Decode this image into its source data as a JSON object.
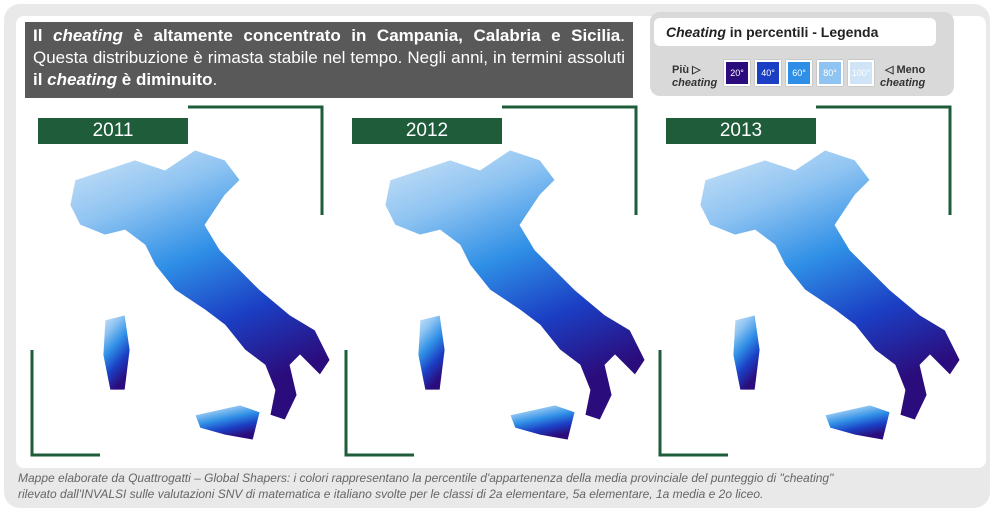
{
  "header": {
    "segments": [
      {
        "text": "Il ",
        "style": "bold"
      },
      {
        "text": "cheating",
        "style": "bold-italic"
      },
      {
        "text": " è altamente concentrato in Campania, Calabria e Sicilia",
        "style": "bold"
      },
      {
        "text": ". Questa distribuzione è rimasta stabile nel tempo. Negli anni, in termini assoluti ",
        "style": "normal"
      },
      {
        "text": "il ",
        "style": "bold"
      },
      {
        "text": "cheating",
        "style": "bold-italic"
      },
      {
        "text": " è diminuito",
        "style": "bold"
      },
      {
        "text": ".",
        "style": "normal"
      }
    ]
  },
  "legend": {
    "title_italic": "Cheating",
    "title_rest": " in percentili - Legenda",
    "left": [
      "Più",
      "cheating"
    ],
    "right": [
      "Meno",
      "cheating"
    ],
    "classes": [
      {
        "label": "20°",
        "color": "#2b0c7c"
      },
      {
        "label": "40°",
        "color": "#1b3fc4"
      },
      {
        "label": "60°",
        "color": "#2f8fe6"
      },
      {
        "label": "80°",
        "color": "#8fc4f2"
      },
      {
        "label": "100°",
        "color": "#cfe4f7"
      }
    ]
  },
  "maps": [
    {
      "year": "2011"
    },
    {
      "year": "2012"
    },
    {
      "year": "2013"
    }
  ],
  "caption": [
    "Mappe elaborate da Quattrogatti – Global Shapers: i colori rappresentano la percentile d'appartenenza della media provinciale del punteggio di \"cheating\"",
    "rilevato dall'INVALSI sulle valutazioni SNV di matematica e italiano svolte per le classi di 2a elementare, 5a elementare, 1a media e 2o liceo."
  ]
}
